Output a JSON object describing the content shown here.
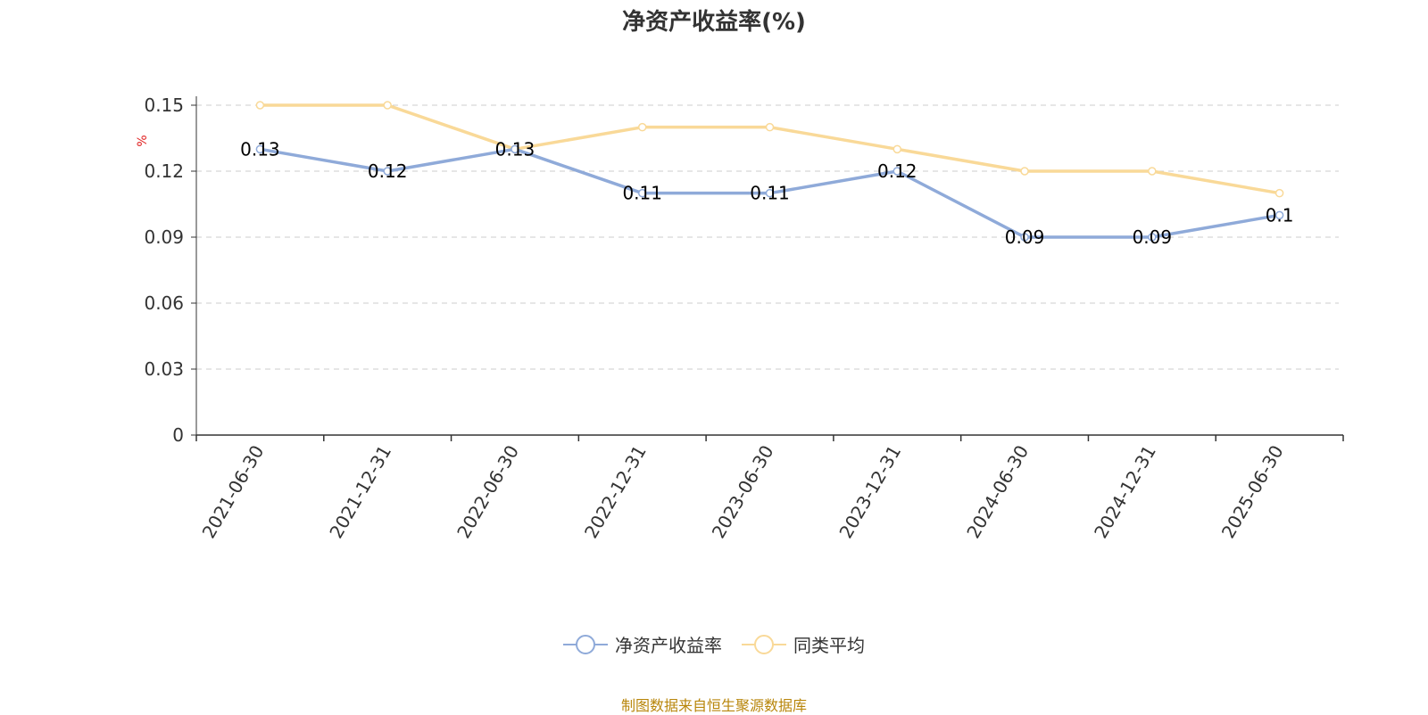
{
  "source_note": "制图数据来自恒生聚源数据库",
  "colors": {
    "series1": "#8faad9",
    "series2": "#f9d998",
    "axis": "#333333",
    "grid": "#cccccc",
    "unit": "#e02020"
  },
  "chart_data": {
    "type": "line",
    "title": "净资产收益率(%)",
    "ylabel": "%",
    "categories": [
      "2021-06-30",
      "2021-12-31",
      "2022-06-30",
      "2022-12-31",
      "2023-06-30",
      "2023-12-31",
      "2024-06-30",
      "2024-12-31",
      "2025-06-30"
    ],
    "ylim": [
      0,
      0.15
    ],
    "yticks": [
      "0",
      "0.03",
      "0.06",
      "0.09",
      "0.12",
      "0.15"
    ],
    "grid": true,
    "legend_position": "bottom",
    "series": [
      {
        "name": "净资产收益率",
        "values": [
          0.13,
          0.12,
          0.13,
          0.11,
          0.11,
          0.12,
          0.09,
          0.09,
          0.1
        ],
        "labels": [
          "0.13",
          "0.12",
          "0.13",
          "0.11",
          "0.11",
          "0.12",
          "0.09",
          "0.09",
          "0.1"
        ]
      },
      {
        "name": "同类平均",
        "values": [
          0.15,
          0.15,
          0.13,
          0.14,
          0.14,
          0.13,
          0.12,
          0.12,
          0.11
        ]
      }
    ]
  }
}
